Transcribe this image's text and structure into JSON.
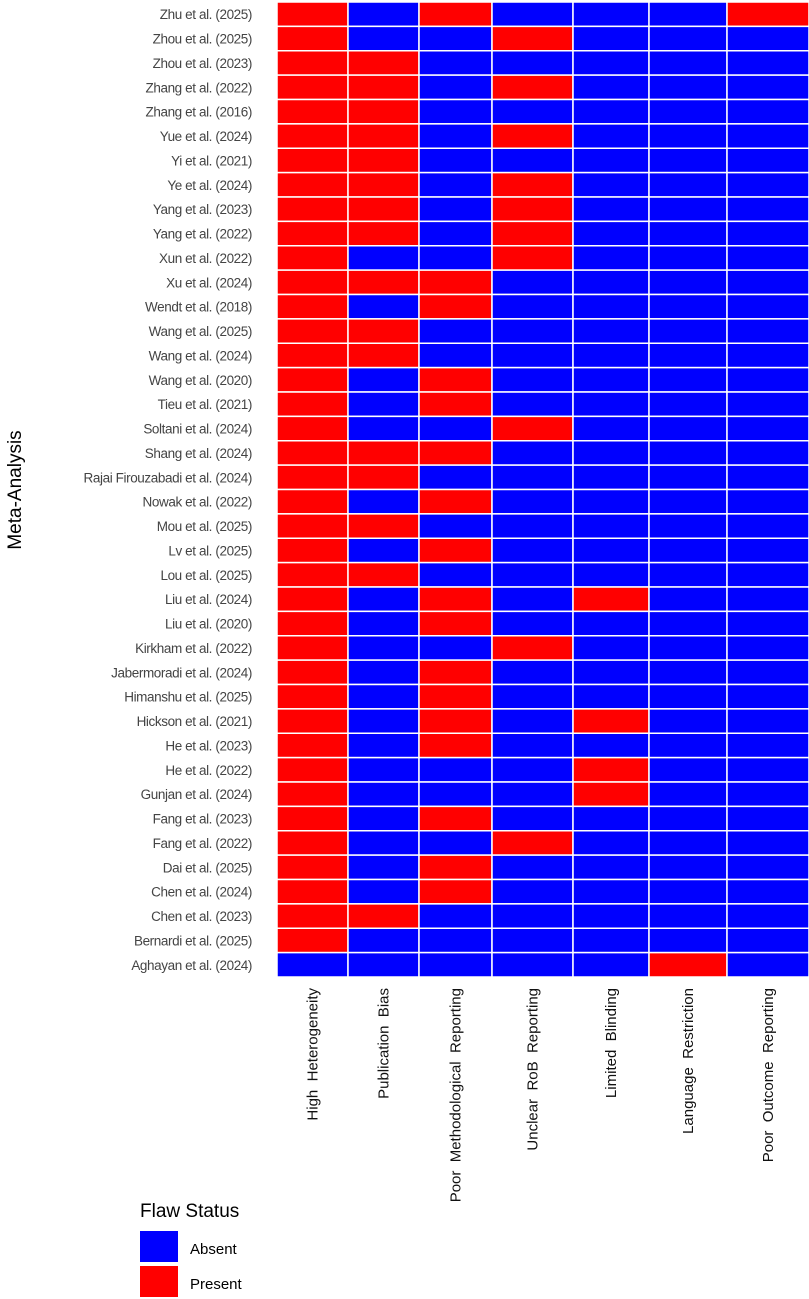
{
  "chart_data": {
    "type": "heatmap",
    "ylabel": "Meta-Analysis",
    "xlabel": "",
    "columns": [
      "High  Heterogeneity",
      "Publication  Bias",
      "Poor  Methodological  Reporting",
      "Unclear  RoB  Reporting",
      "Limited  Blinding",
      "Language  Restriction",
      "Poor  Outcome  Reporting"
    ],
    "rows": [
      {
        "study": "Zhu et al. (2025)",
        "values": [
          1,
          0,
          1,
          0,
          0,
          0,
          1
        ]
      },
      {
        "study": "Zhou et al. (2025)",
        "values": [
          1,
          0,
          0,
          1,
          0,
          0,
          0
        ]
      },
      {
        "study": "Zhou et al. (2023)",
        "values": [
          1,
          1,
          0,
          0,
          0,
          0,
          0
        ]
      },
      {
        "study": "Zhang et al. (2022)",
        "values": [
          1,
          1,
          0,
          1,
          0,
          0,
          0
        ]
      },
      {
        "study": "Zhang et al. (2016)",
        "values": [
          1,
          1,
          0,
          0,
          0,
          0,
          0
        ]
      },
      {
        "study": "Yue et al. (2024)",
        "values": [
          1,
          1,
          0,
          1,
          0,
          0,
          0
        ]
      },
      {
        "study": "Yi et al. (2021)",
        "values": [
          1,
          1,
          0,
          0,
          0,
          0,
          0
        ]
      },
      {
        "study": "Ye et al. (2024)",
        "values": [
          1,
          1,
          0,
          1,
          0,
          0,
          0
        ]
      },
      {
        "study": "Yang et al. (2023)",
        "values": [
          1,
          1,
          0,
          1,
          0,
          0,
          0
        ]
      },
      {
        "study": "Yang et al. (2022)",
        "values": [
          1,
          1,
          0,
          1,
          0,
          0,
          0
        ]
      },
      {
        "study": "Xun et al. (2022)",
        "values": [
          1,
          0,
          0,
          1,
          0,
          0,
          0
        ]
      },
      {
        "study": "Xu et al. (2024)",
        "values": [
          1,
          1,
          1,
          0,
          0,
          0,
          0
        ]
      },
      {
        "study": "Wendt et al. (2018)",
        "values": [
          1,
          0,
          1,
          0,
          0,
          0,
          0
        ]
      },
      {
        "study": "Wang et al. (2025)",
        "values": [
          1,
          1,
          0,
          0,
          0,
          0,
          0
        ]
      },
      {
        "study": "Wang et al. (2024)",
        "values": [
          1,
          1,
          0,
          0,
          0,
          0,
          0
        ]
      },
      {
        "study": "Wang et al. (2020)",
        "values": [
          1,
          0,
          1,
          0,
          0,
          0,
          0
        ]
      },
      {
        "study": "Tieu et al. (2021)",
        "values": [
          1,
          0,
          1,
          0,
          0,
          0,
          0
        ]
      },
      {
        "study": "Soltani et al. (2024)",
        "values": [
          1,
          0,
          0,
          1,
          0,
          0,
          0
        ]
      },
      {
        "study": "Shang et al. (2024)",
        "values": [
          1,
          1,
          1,
          0,
          0,
          0,
          0
        ]
      },
      {
        "study": "Rajai Firouzabadi et al. (2024)",
        "values": [
          1,
          1,
          0,
          0,
          0,
          0,
          0
        ]
      },
      {
        "study": "Nowak et al. (2022)",
        "values": [
          1,
          0,
          1,
          0,
          0,
          0,
          0
        ]
      },
      {
        "study": "Mou et al. (2025)",
        "values": [
          1,
          1,
          0,
          0,
          0,
          0,
          0
        ]
      },
      {
        "study": "Lv et al. (2025)",
        "values": [
          1,
          0,
          1,
          0,
          0,
          0,
          0
        ]
      },
      {
        "study": "Lou et al. (2025)",
        "values": [
          1,
          1,
          0,
          0,
          0,
          0,
          0
        ]
      },
      {
        "study": "Liu et al. (2024)",
        "values": [
          1,
          0,
          1,
          0,
          1,
          0,
          0
        ]
      },
      {
        "study": "Liu et al. (2020)",
        "values": [
          1,
          0,
          1,
          0,
          0,
          0,
          0
        ]
      },
      {
        "study": "Kirkham et al. (2022)",
        "values": [
          1,
          0,
          0,
          1,
          0,
          0,
          0
        ]
      },
      {
        "study": "Jabermoradi et al. (2024)",
        "values": [
          1,
          0,
          1,
          0,
          0,
          0,
          0
        ]
      },
      {
        "study": "Himanshu et al. (2025)",
        "values": [
          1,
          0,
          1,
          0,
          0,
          0,
          0
        ]
      },
      {
        "study": "Hickson et al. (2021)",
        "values": [
          1,
          0,
          1,
          0,
          1,
          0,
          0
        ]
      },
      {
        "study": "He et al. (2023)",
        "values": [
          1,
          0,
          1,
          0,
          0,
          0,
          0
        ]
      },
      {
        "study": "He et al. (2022)",
        "values": [
          1,
          0,
          0,
          0,
          1,
          0,
          0
        ]
      },
      {
        "study": "Gunjan et al. (2024)",
        "values": [
          1,
          0,
          0,
          0,
          1,
          0,
          0
        ]
      },
      {
        "study": "Fang et al. (2023)",
        "values": [
          1,
          0,
          1,
          0,
          0,
          0,
          0
        ]
      },
      {
        "study": "Fang et al. (2022)",
        "values": [
          1,
          0,
          0,
          1,
          0,
          0,
          0
        ]
      },
      {
        "study": "Dai et al. (2025)",
        "values": [
          1,
          0,
          1,
          0,
          0,
          0,
          0
        ]
      },
      {
        "study": "Chen et al. (2024)",
        "values": [
          1,
          0,
          1,
          0,
          0,
          0,
          0
        ]
      },
      {
        "study": "Chen et al. (2023)",
        "values": [
          1,
          1,
          0,
          0,
          0,
          0,
          0
        ]
      },
      {
        "study": "Bernardi et al. (2025)",
        "values": [
          1,
          0,
          0,
          0,
          0,
          0,
          0
        ]
      },
      {
        "study": "Aghayan et al. (2024)",
        "values": [
          0,
          0,
          0,
          0,
          0,
          1,
          0
        ]
      }
    ],
    "legend": {
      "title": "Flaw Status",
      "position": "bottom-left",
      "items": [
        {
          "label": "Absent",
          "value": 0,
          "color": "#0000FF"
        },
        {
          "label": "Present",
          "value": 1,
          "color": "#FF0000"
        }
      ]
    }
  }
}
